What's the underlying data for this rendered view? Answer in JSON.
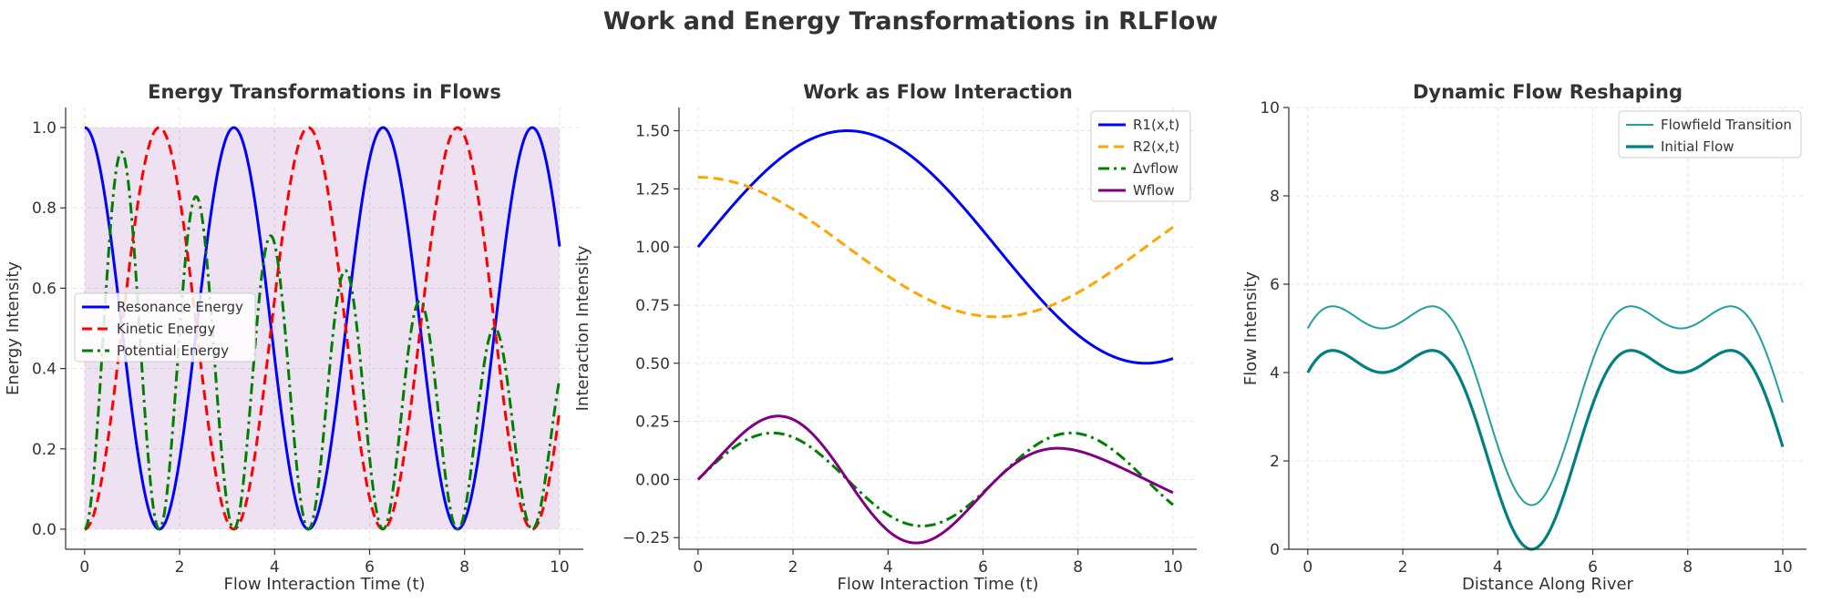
{
  "figure": {
    "title": "Work and Energy Transformations in RLFlow"
  },
  "chart_data": [
    {
      "type": "line",
      "title": "Energy Transformations in Flows",
      "xlabel": "Flow Interaction Time (t)",
      "ylabel": "Energy Intensity",
      "xlim": [
        -0.4,
        10.5
      ],
      "ylim": [
        -0.05,
        1.05
      ],
      "xticks": [
        0,
        2,
        4,
        6,
        8,
        10
      ],
      "yticks": [
        0.0,
        0.2,
        0.4,
        0.6,
        0.8,
        1.0
      ],
      "xtick_labels": [
        "0",
        "2",
        "4",
        "6",
        "8",
        "10"
      ],
      "ytick_labels": [
        "0.0",
        "0.2",
        "0.4",
        "0.6",
        "0.8",
        "1.0"
      ],
      "grid": true,
      "legend_position": "center-left",
      "fill": {
        "between": [
          0,
          1
        ],
        "x_range": [
          0,
          10
        ],
        "color": "#9b59b6",
        "alpha": 0.18
      },
      "series": [
        {
          "name": "Resonance Energy",
          "function": "cos(t)^2",
          "color": "#0000ff",
          "style": "solid"
        },
        {
          "name": "Kinetic Energy",
          "function": "sin(t)^2",
          "color": "#ff0000",
          "style": "dashed"
        },
        {
          "name": "Potential Energy",
          "function": "sin(2t)^2 * exp(-0.08t)",
          "color": "#008000",
          "style": "dashdot"
        }
      ]
    },
    {
      "type": "line",
      "title": "Work as Flow Interaction",
      "xlabel": "Flow Interaction Time (t)",
      "ylabel": "Interaction Intensity",
      "xlim": [
        -0.4,
        10.5
      ],
      "ylim": [
        -0.3,
        1.6
      ],
      "xticks": [
        0,
        2,
        4,
        6,
        8,
        10
      ],
      "yticks": [
        -0.25,
        0.0,
        0.25,
        0.5,
        0.75,
        1.0,
        1.25,
        1.5
      ],
      "xtick_labels": [
        "0",
        "2",
        "4",
        "6",
        "8",
        "10"
      ],
      "ytick_labels": [
        "−0.25",
        "0.00",
        "0.25",
        "0.50",
        "0.75",
        "1.00",
        "1.25",
        "1.50"
      ],
      "grid": true,
      "legend_position": "top-right",
      "series": [
        {
          "name": "R1(x,t)",
          "function": "1 + 0.5 sin(t/2)",
          "color": "#0000ff",
          "style": "solid"
        },
        {
          "name": "R2(x,t)",
          "function": "1 + 0.3 cos(t/2)",
          "color": "#ffa500",
          "style": "dashed"
        },
        {
          "name": "Δvflow",
          "function": "0.2 sin(t)",
          "color": "#008000",
          "style": "dashdot"
        },
        {
          "name": "Wflow",
          "function": "(1 + 0.5 sin(t/2)) * 0.2 sin(t)",
          "color": "#800080",
          "style": "solid"
        }
      ]
    },
    {
      "type": "line",
      "title": "Dynamic Flow Reshaping",
      "xlabel": "Distance Along River",
      "ylabel": "Flow Intensity",
      "xlim": [
        -0.4,
        10.5
      ],
      "ylim": [
        0,
        10
      ],
      "xticks": [
        0,
        2,
        4,
        6,
        8,
        10
      ],
      "yticks": [
        0,
        2,
        4,
        6,
        8,
        10
      ],
      "xtick_labels": [
        "0",
        "2",
        "4",
        "6",
        "8",
        "10"
      ],
      "ytick_labels": [
        "0",
        "2",
        "4",
        "6",
        "8",
        "10"
      ],
      "grid": true,
      "legend_position": "top-right",
      "series": [
        {
          "name": "Flowfield Transition",
          "function": "3 + 2 sin(x) + cos(2x) + 1",
          "color": "#20a0a0",
          "style": "solid-thin"
        },
        {
          "name": "Initial Flow",
          "function": "3 + 2 sin(x) + cos(2x)",
          "color": "#008080",
          "style": "solid-thick"
        }
      ]
    }
  ]
}
